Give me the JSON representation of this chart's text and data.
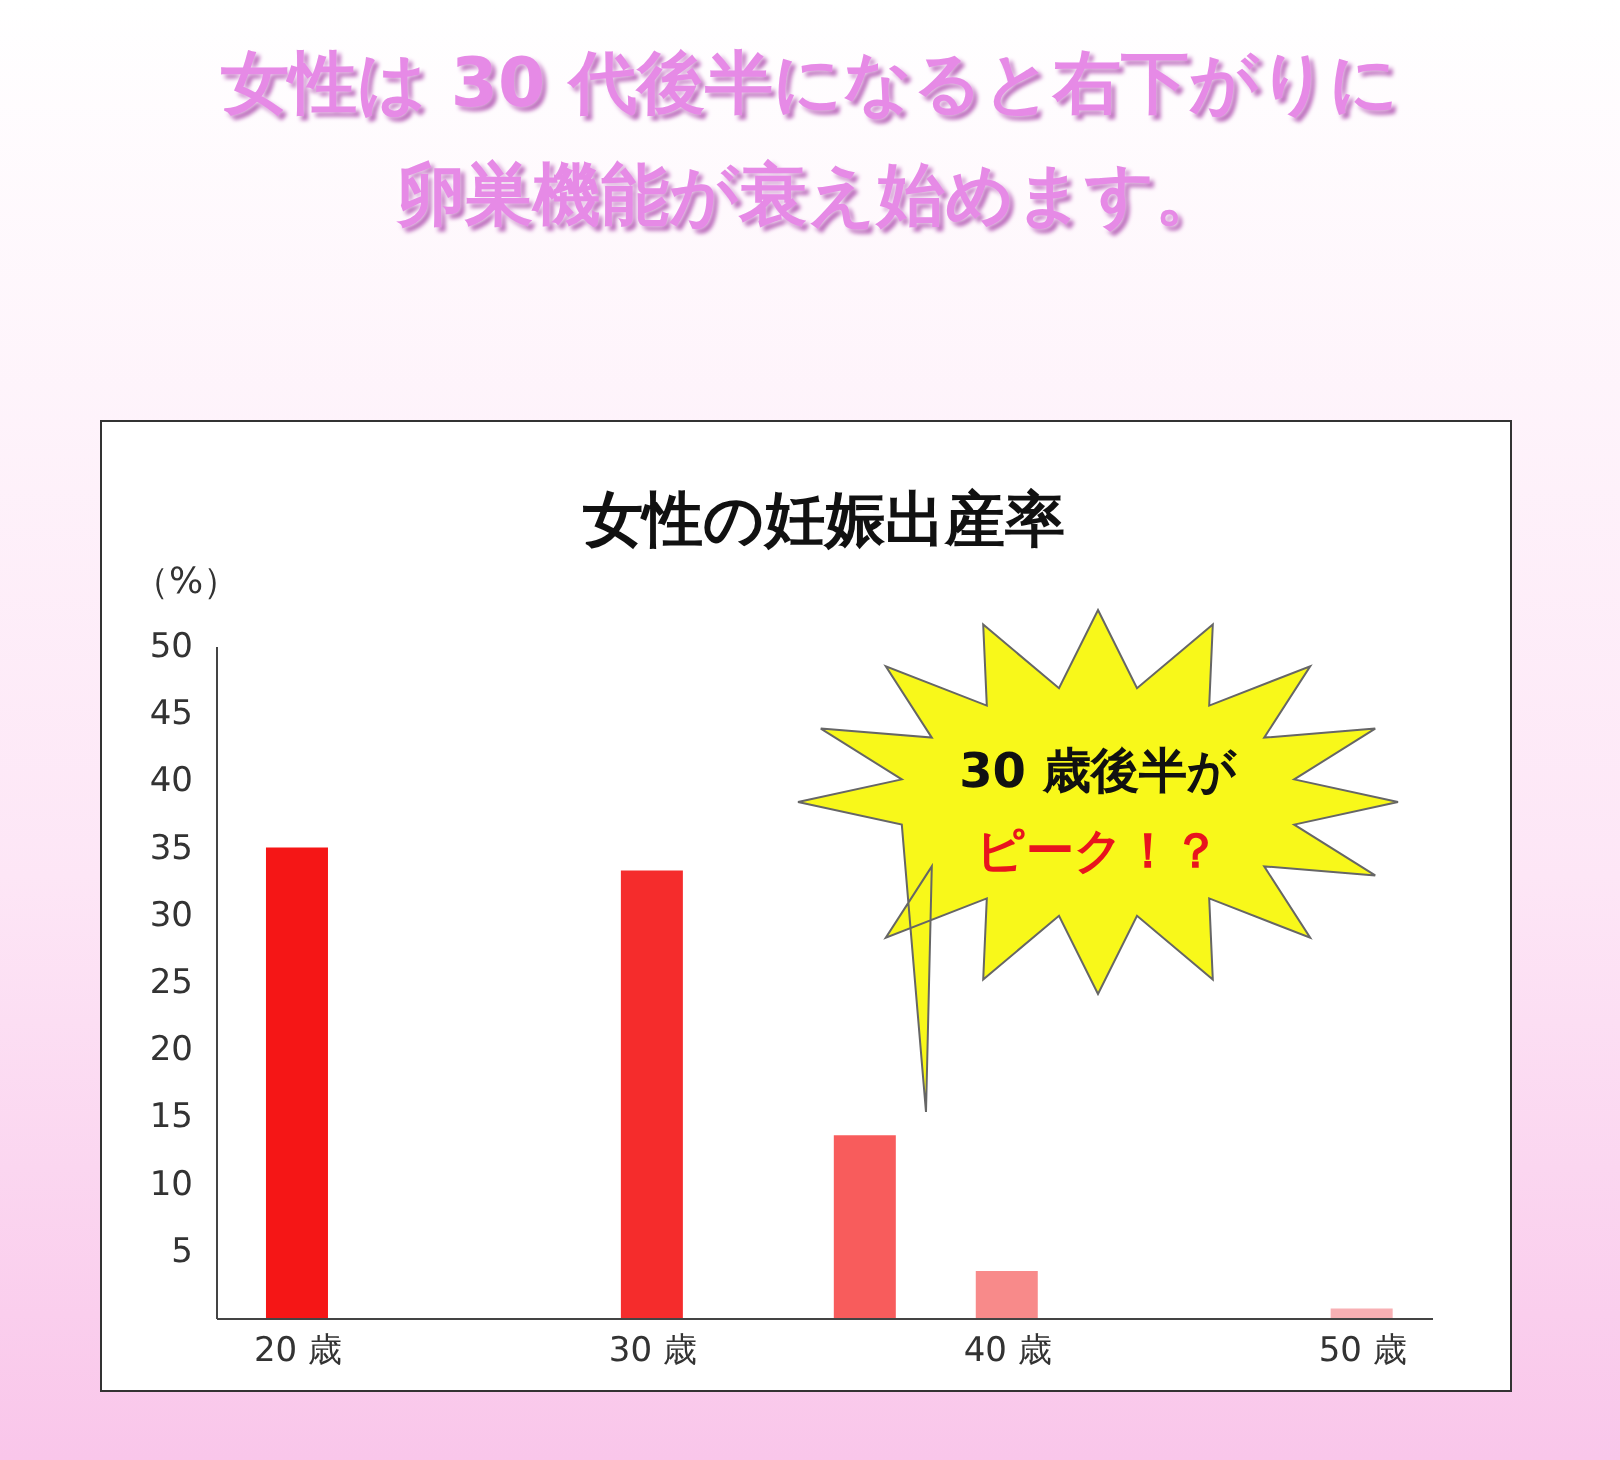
{
  "chart_data": {
    "type": "bar",
    "title": "女性は 30 代後半になると右下がりに卵巣機能が衰え始めます。",
    "subtitle": "女性の妊娠出産率",
    "ylabel": "（%）",
    "x": [
      20,
      30,
      36,
      40,
      50
    ],
    "values": [
      35,
      33.3,
      13.6,
      3.5,
      0.7
    ],
    "colors": [
      "#f51616",
      "#f52c2c",
      "#f85c5c",
      "#f88a8a",
      "#f8b0b4"
    ],
    "xlim": [
      18,
      51.7
    ],
    "xticks": [
      {
        "value": 20,
        "label": "20 歳"
      },
      {
        "value": 30,
        "label": "30 歳"
      },
      {
        "value": 40,
        "label": "40 歳"
      },
      {
        "value": 50,
        "label": "50 歳"
      }
    ],
    "ylim": [
      0,
      50
    ],
    "yticks": [
      5,
      10,
      15,
      20,
      25,
      30,
      35,
      40,
      45,
      50
    ],
    "annotations": [
      "30 歳後半が",
      "ピーク！？"
    ]
  }
}
